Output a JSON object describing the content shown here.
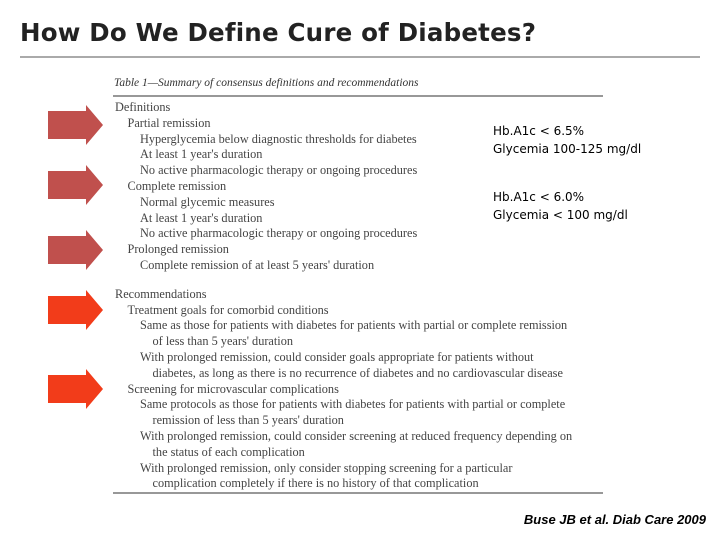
{
  "header": {
    "title": "How Do We Define Cure of Diabetes?"
  },
  "table": {
    "caption": "Table 1—Summary of consensus definitions and recommendations",
    "rows": [
      {
        "text": "Definitions",
        "level": 0
      },
      {
        "text": "Partial remission",
        "level": 1
      },
      {
        "text": "Hyperglycemia below diagnostic thresholds for diabetes",
        "level": 2
      },
      {
        "text": "At least 1 year's duration",
        "level": 2
      },
      {
        "text": "No active pharmacologic therapy or ongoing procedures",
        "level": 2
      },
      {
        "text": "Complete remission",
        "level": 1
      },
      {
        "text": "Normal glycemic measures",
        "level": 2
      },
      {
        "text": "At least 1 year's duration",
        "level": 2
      },
      {
        "text": "No active pharmacologic therapy or ongoing procedures",
        "level": 2
      },
      {
        "text": "Prolonged remission",
        "level": 1
      },
      {
        "text": "Complete remission of at least 5 years' duration",
        "level": 2
      },
      {
        "text": "Recommendations",
        "level": 0
      },
      {
        "text": "Treatment goals for comorbid conditions",
        "level": 1
      },
      {
        "text": "Same as those for patients with diabetes for patients with partial or complete remission",
        "level": 2
      },
      {
        "text": "of less than 5 years' duration",
        "level": 3
      },
      {
        "text": "With prolonged remission, could consider goals appropriate for patients without",
        "level": 2
      },
      {
        "text": "diabetes, as long as there is no recurrence of diabetes and no cardiovascular disease",
        "level": 3
      },
      {
        "text": "Screening for microvascular complications",
        "level": 1
      },
      {
        "text": "Same protocols as those for patients with diabetes for patients with partial or complete",
        "level": 2
      },
      {
        "text": "remission of less than 5 years' duration",
        "level": 3
      },
      {
        "text": "With prolonged remission, could consider screening at reduced frequency depending on",
        "level": 2
      },
      {
        "text": "the status of each complication",
        "level": 3
      },
      {
        "text": "With prolonged remission, only consider stopping screening for a particular",
        "level": 2
      },
      {
        "text": "complication completely if there is no history of that complication",
        "level": 3
      }
    ]
  },
  "annotations": [
    {
      "lines": [
        "Hb.A1c < 6.5%",
        "Glycemia 100-125 mg/dl"
      ]
    },
    {
      "lines": [
        "Hb.A1c < 6.0%",
        "Glycemia < 100 mg/dl"
      ]
    }
  ],
  "citation": "Buse JB et al. Diab Care 2009"
}
